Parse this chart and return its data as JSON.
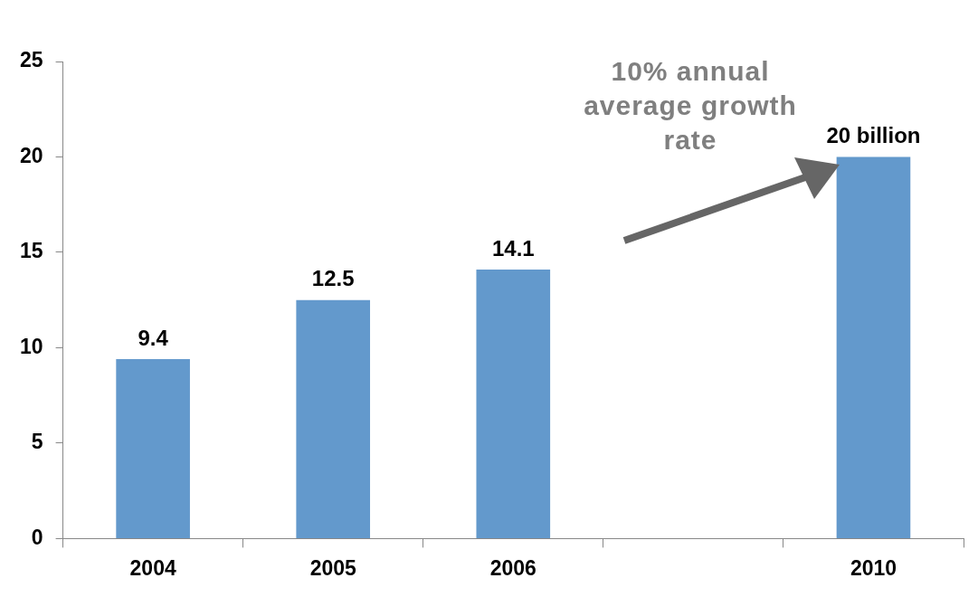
{
  "chart_data": {
    "type": "bar",
    "categories": [
      "2004",
      "2005",
      "2006",
      null,
      "2010"
    ],
    "values": [
      9.4,
      12.5,
      14.1,
      null,
      20
    ],
    "value_labels": [
      "9.4",
      "12.5",
      "14.1",
      null,
      "20 billion"
    ],
    "color": "#6399cc",
    "ylim": [
      0,
      25
    ],
    "yticks": [
      0,
      5,
      10,
      15,
      20,
      25
    ],
    "grid": false,
    "legend": false,
    "annotations": [
      "10% annual average growth rate"
    ]
  }
}
